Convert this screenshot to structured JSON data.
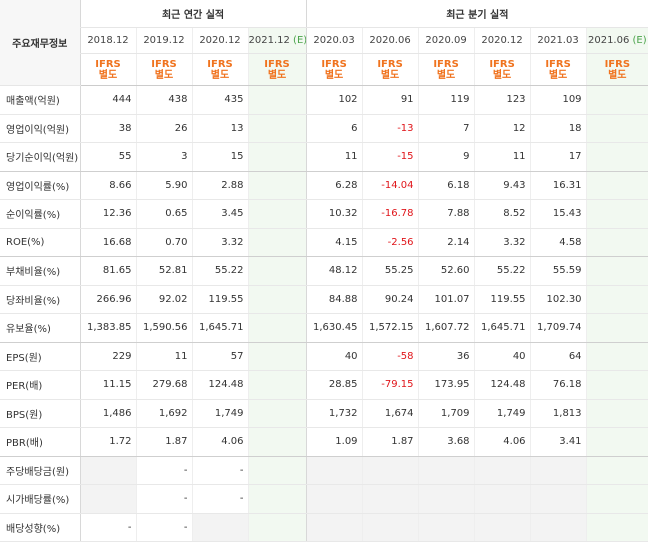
{
  "header": {
    "row_label": "주요재무정보",
    "annual_title": "최근 연간 실적",
    "quarter_title": "최근 분기 실적",
    "periods": [
      {
        "label": "2018.12",
        "mark": ""
      },
      {
        "label": "2019.12",
        "mark": ""
      },
      {
        "label": "2020.12",
        "mark": ""
      },
      {
        "label": "2021.12",
        "mark": "(E)"
      },
      {
        "label": "2020.03",
        "mark": ""
      },
      {
        "label": "2020.06",
        "mark": ""
      },
      {
        "label": "2020.09",
        "mark": ""
      },
      {
        "label": "2020.12",
        "mark": ""
      },
      {
        "label": "2021.03",
        "mark": ""
      },
      {
        "label": "2021.06",
        "mark": "(E)"
      }
    ],
    "ifrs_line1": "IFRS",
    "ifrs_line2": "별도"
  },
  "rows": [
    {
      "label": "매출액(억원)",
      "values": [
        "444",
        "438",
        "435",
        "",
        "102",
        "91",
        "119",
        "123",
        "109",
        ""
      ]
    },
    {
      "label": "영업이익(억원)",
      "values": [
        "38",
        "26",
        "13",
        "",
        "6",
        "-13",
        "7",
        "12",
        "18",
        ""
      ]
    },
    {
      "label": "당기순이익(억원)",
      "values": [
        "55",
        "3",
        "15",
        "",
        "11",
        "-15",
        "9",
        "11",
        "17",
        ""
      ]
    },
    {
      "label": "영업이익률(%)",
      "values": [
        "8.66",
        "5.90",
        "2.88",
        "",
        "6.28",
        "-14.04",
        "6.18",
        "9.43",
        "16.31",
        ""
      ]
    },
    {
      "label": "순이익률(%)",
      "values": [
        "12.36",
        "0.65",
        "3.45",
        "",
        "10.32",
        "-16.78",
        "7.88",
        "8.52",
        "15.43",
        ""
      ]
    },
    {
      "label": "ROE(%)",
      "values": [
        "16.68",
        "0.70",
        "3.32",
        "",
        "4.15",
        "-2.56",
        "2.14",
        "3.32",
        "4.58",
        ""
      ]
    },
    {
      "label": "부채비율(%)",
      "values": [
        "81.65",
        "52.81",
        "55.22",
        "",
        "48.12",
        "55.25",
        "52.60",
        "55.22",
        "55.59",
        ""
      ]
    },
    {
      "label": "당좌비율(%)",
      "values": [
        "266.96",
        "92.02",
        "119.55",
        "",
        "84.88",
        "90.24",
        "101.07",
        "119.55",
        "102.30",
        ""
      ]
    },
    {
      "label": "유보율(%)",
      "values": [
        "1,383.85",
        "1,590.56",
        "1,645.71",
        "",
        "1,630.45",
        "1,572.15",
        "1,607.72",
        "1,645.71",
        "1,709.74",
        ""
      ]
    },
    {
      "label": "EPS(원)",
      "values": [
        "229",
        "11",
        "57",
        "",
        "40",
        "-58",
        "36",
        "40",
        "64",
        ""
      ]
    },
    {
      "label": "PER(배)",
      "values": [
        "11.15",
        "279.68",
        "124.48",
        "",
        "28.85",
        "-79.15",
        "173.95",
        "124.48",
        "76.18",
        ""
      ]
    },
    {
      "label": "BPS(원)",
      "values": [
        "1,486",
        "1,692",
        "1,749",
        "",
        "1,732",
        "1,674",
        "1,709",
        "1,749",
        "1,813",
        ""
      ]
    },
    {
      "label": "PBR(배)",
      "values": [
        "1.72",
        "1.87",
        "4.06",
        "",
        "1.09",
        "1.87",
        "3.68",
        "4.06",
        "3.41",
        ""
      ]
    },
    {
      "label": "주당배당금(원)",
      "values": [
        "",
        "-",
        "-",
        "",
        "",
        "",
        "",
        "",
        "",
        ""
      ]
    },
    {
      "label": "시가배당률(%)",
      "values": [
        "",
        "-",
        "-",
        "",
        "",
        "",
        "",
        "",
        "",
        ""
      ]
    },
    {
      "label": "배당성향(%)",
      "values": [
        "-",
        "-",
        "",
        "",
        "",
        "",
        "",
        "",
        "",
        ""
      ]
    }
  ],
  "colors": {
    "ifrs": "#f0731e",
    "negative": "#e0151a",
    "estimate_bg": "#f2f9f1",
    "empty_bg": "#f3f3f3"
  }
}
